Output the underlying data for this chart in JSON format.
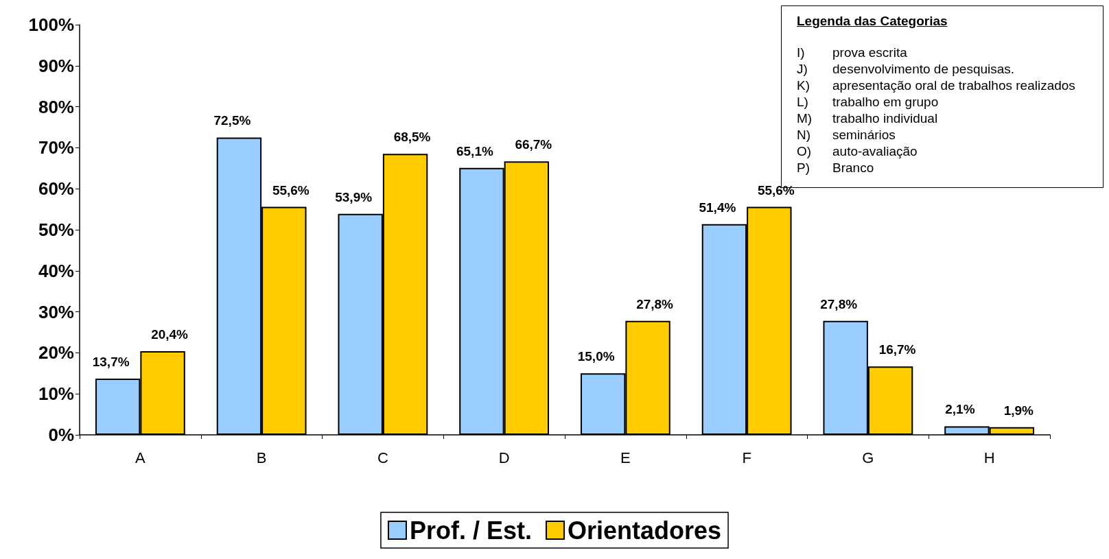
{
  "chart_data": {
    "type": "bar",
    "categories": [
      "A",
      "B",
      "C",
      "D",
      "E",
      "F",
      "G",
      "H"
    ],
    "series": [
      {
        "name": "Prof. / Est.",
        "color": "#99ccff",
        "values": [
          13.7,
          72.5,
          53.9,
          65.1,
          15.0,
          51.4,
          27.8,
          2.1
        ],
        "value_labels": [
          "13,7%",
          "72,5%",
          "53,9%",
          "65,1%",
          "15,0%",
          "51,4%",
          "27,8%",
          "2,1%"
        ]
      },
      {
        "name": "Orientadores",
        "color": "#ffcc00",
        "values": [
          20.4,
          55.6,
          68.5,
          66.7,
          27.8,
          55.6,
          16.7,
          1.9
        ],
        "value_labels": [
          "20,4%",
          "55,6%",
          "68,5%",
          "66,7%",
          "27,8%",
          "55,6%",
          "16,7%",
          "1,9%"
        ]
      }
    ],
    "ylim": [
      0,
      100
    ],
    "yticks": [
      {
        "value": 0,
        "label": "0%"
      },
      {
        "value": 10,
        "label": "10%"
      },
      {
        "value": 20,
        "label": "20%"
      },
      {
        "value": 30,
        "label": "30%"
      },
      {
        "value": 40,
        "label": "40%"
      },
      {
        "value": 50,
        "label": "50%"
      },
      {
        "value": 60,
        "label": "60%"
      },
      {
        "value": 70,
        "label": "70%"
      },
      {
        "value": 80,
        "label": "80%"
      },
      {
        "value": 90,
        "label": "90%"
      },
      {
        "value": 100,
        "label": "100%"
      }
    ],
    "grid": false,
    "legend": "bottom",
    "annotations": [
      "Legenda das Categorias",
      "I) prova escrita",
      "J) desenvolvimento de pesquisas.",
      "K) apresentação oral de trabalhos realizados",
      "L) trabalho em grupo",
      "M) trabalho individual",
      "N) seminários",
      "O) auto-avaliação",
      "P) Branco"
    ]
  }
}
